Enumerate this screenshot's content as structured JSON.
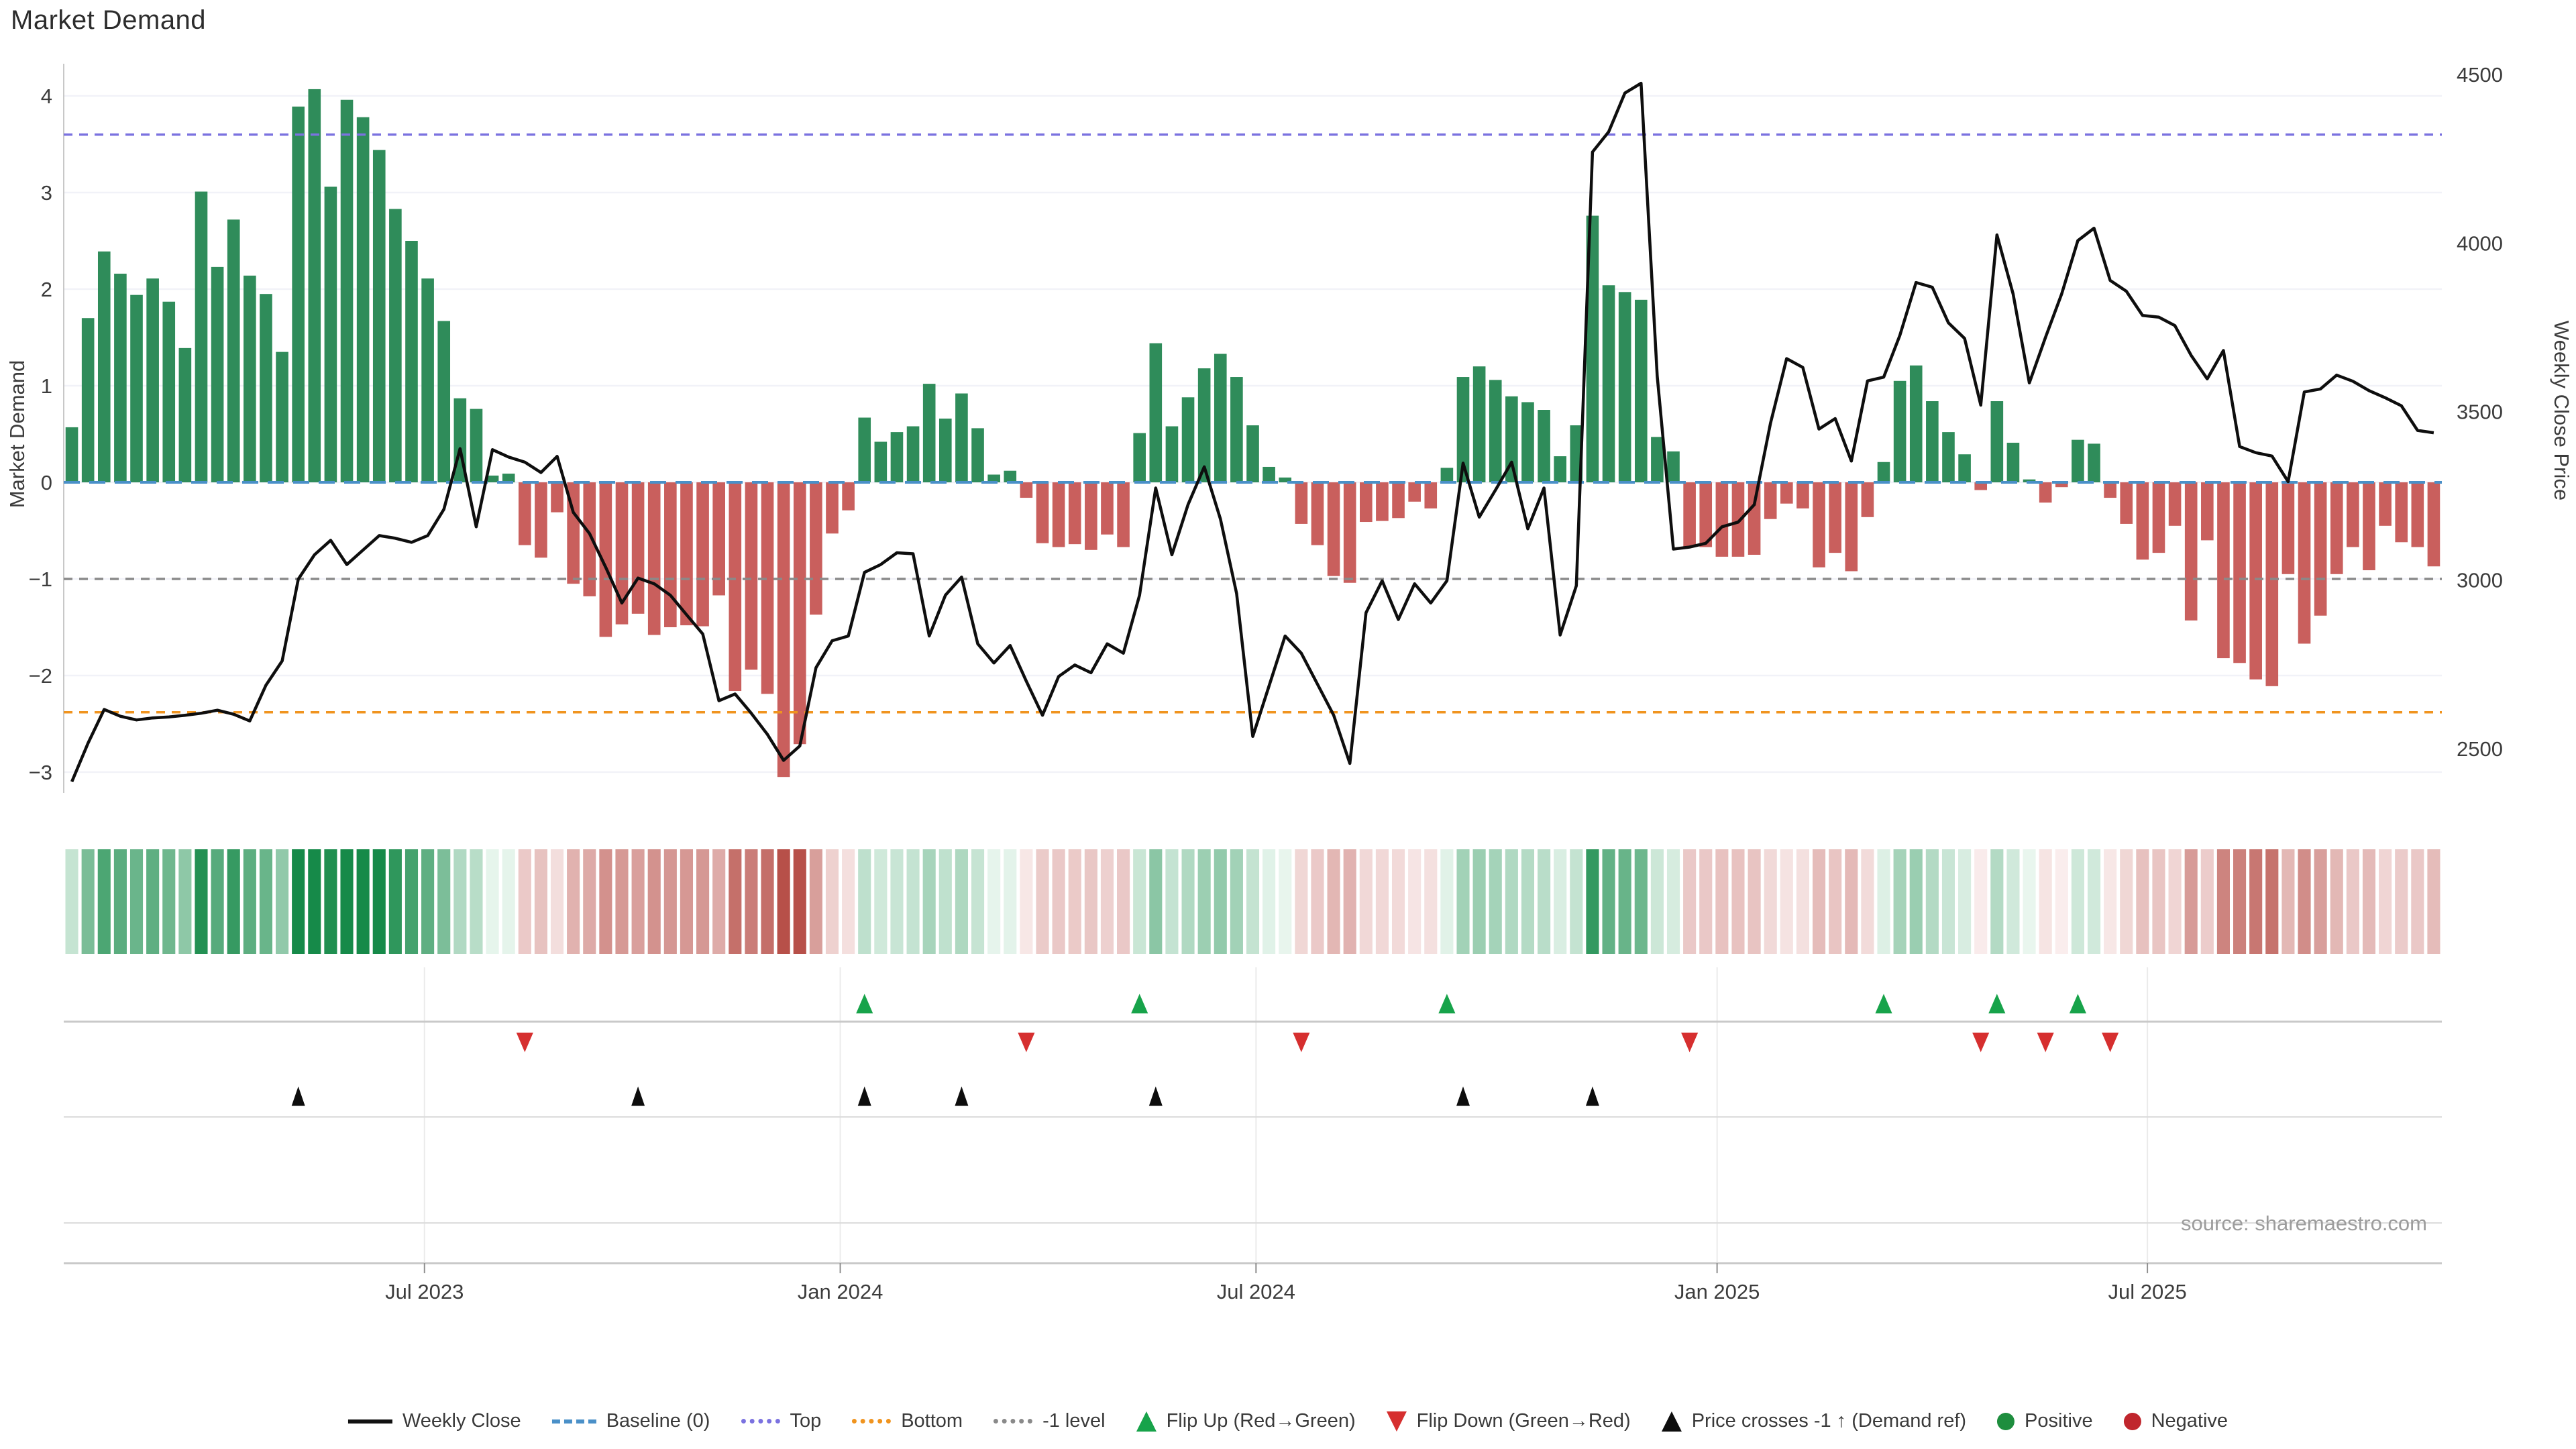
{
  "title": "Market Demand",
  "source": "source: sharemaestro.com",
  "axes": {
    "left_label": "Market Demand",
    "right_label": "Weekly Close Price",
    "left_ticks": [
      4,
      3,
      2,
      1,
      0,
      -1,
      -2,
      -3
    ],
    "right_ticks": [
      4500,
      4000,
      3500,
      3000,
      2500
    ]
  },
  "colors": {
    "positive_bar": "#2f8c5a",
    "negative_bar": "#c95f5d",
    "price_line": "#0e0e0e",
    "baseline": "#4a90c8",
    "top_line": "#7b72e0",
    "bottom_line": "#f0941f",
    "minus_one_line": "#8a8a8a",
    "flip_up": "#17a34a",
    "flip_down": "#d62f2f",
    "price_cross": "#0d0d0d",
    "grid": "#f1f2f8",
    "panel_line_strong": "#c9c9c9",
    "panel_line_light": "#dcdcdc",
    "panel_vline": "#ebebeb",
    "axis_text": "#3c3c3c",
    "source_text": "#9c9c9c"
  },
  "chart_data": {
    "type": "bar+line",
    "x_unit": "week",
    "title": "Market Demand",
    "ylabel_left": "Market Demand",
    "ylabel_right": "Weekly Close Price",
    "ylim_left": [
      -3.3,
      4.35
    ],
    "ylim_right": [
      2390,
      4520
    ],
    "grid": true,
    "legend_position": "bottom",
    "x_ticks": [
      {
        "label": "Jul 2023",
        "index": 21.8
      },
      {
        "label": "Jan 2024",
        "index": 47.5
      },
      {
        "label": "Jul 2024",
        "index": 73.2
      },
      {
        "label": "Jan 2025",
        "index": 101.7
      },
      {
        "label": "Jul 2025",
        "index": 128.3
      }
    ],
    "ref_lines": {
      "baseline": 0,
      "top": 3.6,
      "bottom": -2.38,
      "minus_one_level": -1
    },
    "series": [
      {
        "name": "Market Demand",
        "type": "bar",
        "axis": "left",
        "values": [
          0.57,
          1.7,
          2.39,
          2.16,
          1.94,
          2.11,
          1.87,
          1.39,
          3.01,
          2.23,
          2.72,
          2.14,
          1.95,
          1.35,
          3.89,
          4.07,
          3.06,
          3.96,
          3.78,
          3.44,
          2.83,
          2.5,
          2.11,
          1.67,
          0.87,
          0.76,
          0.07,
          0.09,
          -0.65,
          -0.78,
          -0.31,
          -1.05,
          -1.18,
          -1.6,
          -1.47,
          -1.36,
          -1.58,
          -1.5,
          -1.48,
          -1.49,
          -1.17,
          -2.16,
          -1.94,
          -2.19,
          -3.05,
          -2.71,
          -1.37,
          -0.53,
          -0.29,
          0.67,
          0.42,
          0.52,
          0.58,
          1.02,
          0.66,
          0.92,
          0.56,
          0.08,
          0.12,
          -0.16,
          -0.63,
          -0.67,
          -0.64,
          -0.7,
          -0.54,
          -0.67,
          0.51,
          1.44,
          0.58,
          0.88,
          1.18,
          1.33,
          1.09,
          0.59,
          0.16,
          0.05,
          -0.43,
          -0.65,
          -0.97,
          -1.04,
          -0.41,
          -0.4,
          -0.37,
          -0.2,
          -0.27,
          0.15,
          1.09,
          1.2,
          1.06,
          0.89,
          0.83,
          0.75,
          0.27,
          0.59,
          2.76,
          2.04,
          1.97,
          1.89,
          0.47,
          0.32,
          -0.67,
          -0.67,
          -0.77,
          -0.77,
          -0.75,
          -0.38,
          -0.22,
          -0.27,
          -0.88,
          -0.73,
          -0.92,
          -0.36,
          0.21,
          1.05,
          1.21,
          0.84,
          0.52,
          0.29,
          -0.08,
          0.84,
          0.41,
          0.03,
          -0.21,
          -0.05,
          0.44,
          0.4,
          -0.16,
          -0.43,
          -0.8,
          -0.73,
          -0.45,
          -1.43,
          -0.6,
          -1.82,
          -1.87,
          -2.04,
          -2.11,
          -0.95,
          -1.67,
          -1.38,
          -0.95,
          -0.67,
          -0.91,
          -0.45,
          -0.62,
          -0.67,
          -0.87
        ]
      },
      {
        "name": "Weekly Close",
        "type": "line",
        "axis": "right",
        "values": [
          2402,
          2516,
          2616,
          2596,
          2585,
          2591,
          2594,
          2599,
          2605,
          2614,
          2602,
          2582,
          2688,
          2760,
          3003,
          3075,
          3118,
          3046,
          3089,
          3132,
          3124,
          3112,
          3132,
          3210,
          3390,
          3158,
          3387,
          3365,
          3350,
          3319,
          3367,
          3201,
          3138,
          3038,
          2932,
          3006,
          2989,
          2955,
          2897,
          2840,
          2642,
          2662,
          2605,
          2542,
          2465,
          2508,
          2740,
          2820,
          2834,
          3023,
          3046,
          3081,
          3078,
          2834,
          2955,
          3009,
          2811,
          2754,
          2806,
          2700,
          2599,
          2714,
          2748,
          2725,
          2811,
          2783,
          2955,
          3273,
          3075,
          3224,
          3336,
          3181,
          2960,
          2536,
          2685,
          2834,
          2783,
          2691,
          2599,
          2456,
          2903,
          2998,
          2883,
          2989,
          2932,
          2998,
          3347,
          3187,
          3267,
          3350,
          3152,
          3273,
          2837,
          2983,
          4270,
          4330,
          4445,
          4474,
          3605,
          3092,
          3098,
          3109,
          3158,
          3172,
          3224,
          3465,
          3657,
          3631,
          3448,
          3479,
          3353,
          3591,
          3602,
          3726,
          3883,
          3869,
          3763,
          3717,
          3519,
          4024,
          3849,
          3585,
          3720,
          3849,
          4007,
          4044,
          3889,
          3857,
          3785,
          3780,
          3755,
          3667,
          3597,
          3681,
          3396,
          3378,
          3368,
          3292,
          3558,
          3567,
          3608,
          3590,
          3562,
          3541,
          3517,
          3444,
          3437
        ]
      }
    ],
    "markers": {
      "flip_up_indices": [
        49,
        66,
        85,
        112,
        119,
        124
      ],
      "flip_down_indices": [
        28,
        59,
        76,
        100,
        118,
        122,
        126
      ],
      "price_cross_indices": [
        14,
        35,
        49,
        55,
        67,
        86,
        94
      ]
    },
    "heat_strip": "per-week color intensity of Market Demand (green positive, red negative)"
  },
  "legend": {
    "items": [
      {
        "label": "Weekly Close",
        "type": "line",
        "color": "#111111"
      },
      {
        "label": "Baseline (0)",
        "type": "dash",
        "color": "#4a90c8"
      },
      {
        "label": "Top",
        "type": "dots",
        "color": "#7b72e0"
      },
      {
        "label": "Bottom",
        "type": "dots",
        "color": "#f0941f"
      },
      {
        "label": "-1 level",
        "type": "dots",
        "color": "#8a8a8a"
      },
      {
        "label": "Flip Up (Red→Green)",
        "type": "tri-up",
        "color": "#17a34a"
      },
      {
        "label": "Flip Down (Green→Red)",
        "type": "tri-down",
        "color": "#d62f2f"
      },
      {
        "label": "Price crosses -1 ↑ (Demand ref)",
        "type": "tri-up",
        "color": "#0d0d0d"
      },
      {
        "label": "Positive",
        "type": "circle",
        "color": "#1e8e3e"
      },
      {
        "label": "Negative",
        "type": "circle",
        "color": "#c0262d"
      }
    ]
  }
}
